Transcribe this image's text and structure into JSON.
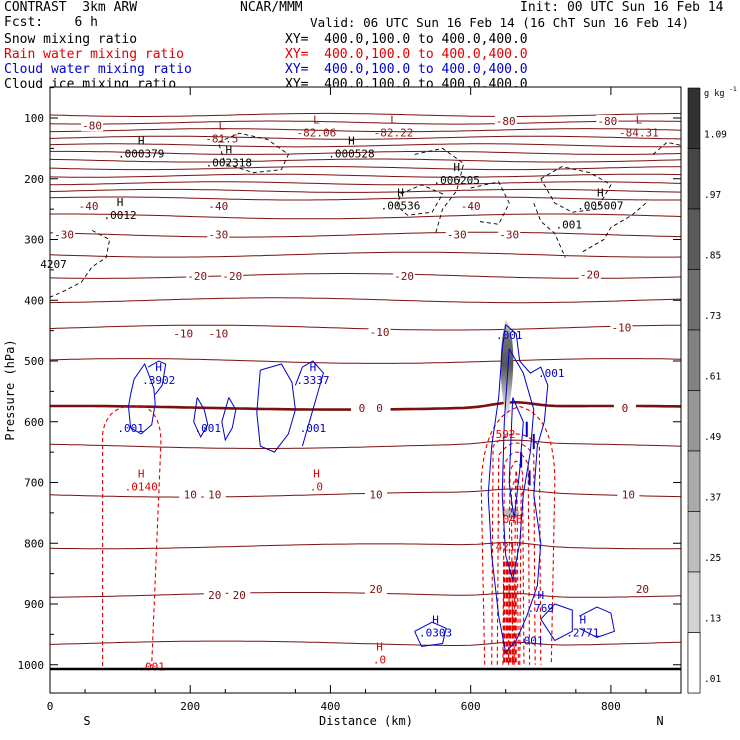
{
  "header": {
    "model": "CONTRAST  3km ARW",
    "center": "NCAR/MMM",
    "init": "Init: 00 UTC Sun 16 Feb 14",
    "fcst": "Fcst:    6 h",
    "valid": "Valid: 06 UTC Sun 16 Feb 14 (16 ChT Sun 16 Feb 14)"
  },
  "fields": [
    {
      "label": "Snow mixing ratio",
      "xy": "XY=  400.0,100.0 to 400.0,400.0",
      "color": "#000000"
    },
    {
      "label": "Rain water mixing ratio",
      "xy": "XY=  400.0,100.0 to 400.0,400.0",
      "color": "#e00000"
    },
    {
      "label": "Cloud water mixing ratio",
      "xy": "XY=  400.0,100.0 to 400.0,400.0",
      "color": "#0000cc"
    },
    {
      "label": "Cloud ice mixing ratio",
      "xy": "XY=  400.0,100.0 to 400.0,400.0",
      "color": "#000000"
    }
  ],
  "chart_data": {
    "type": "cross-section contour",
    "xlabel": "Distance (km)",
    "ylabel": "Pressure (hPa)",
    "xlim": [
      0,
      900
    ],
    "ylim": [
      1000,
      50
    ],
    "x_ticks": [
      0,
      200,
      400,
      600,
      800
    ],
    "y_ticks": [
      100,
      200,
      300,
      400,
      500,
      600,
      700,
      800,
      900,
      1000
    ],
    "x_ends": {
      "left": "S",
      "right": "N"
    },
    "colorbar": {
      "unit": "g kg",
      "unit_exp": "-1",
      "levels": [
        "1.09",
        ".97",
        ".85",
        ".73",
        ".61",
        ".49",
        ".37",
        ".25",
        ".13",
        ".01"
      ]
    },
    "temperature_contours": [
      -80,
      -70,
      -60,
      -50,
      -40,
      -30,
      -20,
      -10,
      0,
      10,
      20
    ],
    "temperature_labels": [
      {
        "text": "-80",
        "x": 60,
        "p": 112
      },
      {
        "text": "-80",
        "x": 650,
        "p": 105
      },
      {
        "text": "-80",
        "x": 795,
        "p": 105
      },
      {
        "text": "-40",
        "x": 55,
        "p": 245
      },
      {
        "text": "-40",
        "x": 240,
        "p": 245
      },
      {
        "text": "-40",
        "x": 600,
        "p": 245
      },
      {
        "text": "-30",
        "x": 20,
        "p": 292
      },
      {
        "text": "-30",
        "x": 240,
        "p": 292
      },
      {
        "text": "-30",
        "x": 580,
        "p": 292
      },
      {
        "text": "-30",
        "x": 655,
        "p": 292
      },
      {
        "text": "-20",
        "x": 210,
        "p": 360
      },
      {
        "text": "-20",
        "x": 260,
        "p": 360
      },
      {
        "text": "-20",
        "x": 505,
        "p": 360
      },
      {
        "text": "-20",
        "x": 770,
        "p": 358
      },
      {
        "text": "-10",
        "x": 190,
        "p": 455
      },
      {
        "text": "-10",
        "x": 240,
        "p": 455
      },
      {
        "text": "-10",
        "x": 470,
        "p": 452
      },
      {
        "text": "-10",
        "x": 815,
        "p": 445
      },
      {
        "text": "0",
        "x": 445,
        "p": 577
      },
      {
        "text": "0",
        "x": 470,
        "p": 577
      },
      {
        "text": "0",
        "x": 820,
        "p": 577
      },
      {
        "text": "10",
        "x": 200,
        "p": 720
      },
      {
        "text": "10",
        "x": 235,
        "p": 720
      },
      {
        "text": "10",
        "x": 465,
        "p": 720
      },
      {
        "text": "10",
        "x": 825,
        "p": 720
      },
      {
        "text": "20",
        "x": 235,
        "p": 885
      },
      {
        "text": "20",
        "x": 270,
        "p": 885
      },
      {
        "text": "20",
        "x": 465,
        "p": 875
      },
      {
        "text": "20",
        "x": 845,
        "p": 875
      }
    ],
    "extrema": [
      {
        "kind": "L",
        "value": "-81.5",
        "x": 245,
        "p": 132,
        "color": "#8b1a1a"
      },
      {
        "kind": "L",
        "value": "-82.06",
        "x": 380,
        "p": 122,
        "color": "#8b1a1a"
      },
      {
        "kind": "L",
        "value": "-82.22",
        "x": 490,
        "p": 122,
        "color": "#8b1a1a"
      },
      {
        "kind": "L",
        "value": "-84.31",
        "x": 840,
        "p": 122,
        "color": "#8b1a1a"
      },
      {
        "kind": "H",
        "value": ".000379",
        "x": 130,
        "p": 157,
        "color": "#000000"
      },
      {
        "kind": "H",
        "value": ".002318",
        "x": 255,
        "p": 172,
        "color": "#000000"
      },
      {
        "kind": "H",
        "value": ".000528",
        "x": 430,
        "p": 157,
        "color": "#000000"
      },
      {
        "kind": "H",
        "value": ".006205",
        "x": 580,
        "p": 200,
        "color": "#000000"
      },
      {
        "kind": "H",
        "value": ".0012",
        "x": 100,
        "p": 258,
        "color": "#000000"
      },
      {
        "kind": "H",
        "value": ".00536",
        "x": 500,
        "p": 242,
        "color": "#000000"
      },
      {
        "kind": "H",
        "value": ".005007",
        "x": 785,
        "p": 242,
        "color": "#000000"
      },
      {
        "kind": "H",
        "value": ".3902",
        "x": 155,
        "p": 530,
        "color": "#0000cc"
      },
      {
        "kind": "H",
        "value": ".3337",
        "x": 375,
        "p": 530,
        "color": "#0000cc"
      },
      {
        "kind": "H",
        "value": ".0140",
        "x": 130,
        "p": 705,
        "color": "#e00000"
      },
      {
        "kind": "H",
        "value": ".0",
        "x": 380,
        "p": 705,
        "color": "#e00000"
      },
      {
        "kind": "H",
        "value": ".0303",
        "x": 550,
        "p": 945,
        "color": "#0000cc"
      },
      {
        "kind": "H",
        "value": ".769",
        "x": 700,
        "p": 905,
        "color": "#0000cc"
      },
      {
        "kind": "H",
        "value": ".2771",
        "x": 760,
        "p": 945,
        "color": "#0000cc"
      },
      {
        "kind": "H",
        "value": ".0",
        "x": 470,
        "p": 990,
        "color": "#e00000"
      }
    ],
    "value_labels": [
      {
        "text": ".001",
        "x": 740,
        "p": 275,
        "color": "#000000"
      },
      {
        "text": "4207",
        "x": 5,
        "p": 340,
        "color": "#000000"
      },
      {
        "text": ".001",
        "x": 655,
        "p": 457,
        "color": "#0000cc"
      },
      {
        "text": ".001",
        "x": 715,
        "p": 520,
        "color": "#0000cc"
      },
      {
        "text": ".001",
        "x": 115,
        "p": 610,
        "color": "#0000cc"
      },
      {
        "text": ".001",
        "x": 225,
        "p": 610,
        "color": "#0000cc"
      },
      {
        "text": ".001",
        "x": 375,
        "p": 610,
        "color": "#0000cc"
      },
      {
        "text": ".592",
        "x": 645,
        "p": 620,
        "color": "#e00000"
      },
      {
        "text": ".046",
        "x": 655,
        "p": 760,
        "color": "#e00000"
      },
      {
        "text": ".421",
        "x": 645,
        "p": 805,
        "color": "#e00000"
      },
      {
        "text": ".001",
        "x": 685,
        "p": 960,
        "color": "#0000cc"
      },
      {
        "text": ".001",
        "x": 145,
        "p": 1003,
        "color": "#e00000"
      }
    ]
  }
}
